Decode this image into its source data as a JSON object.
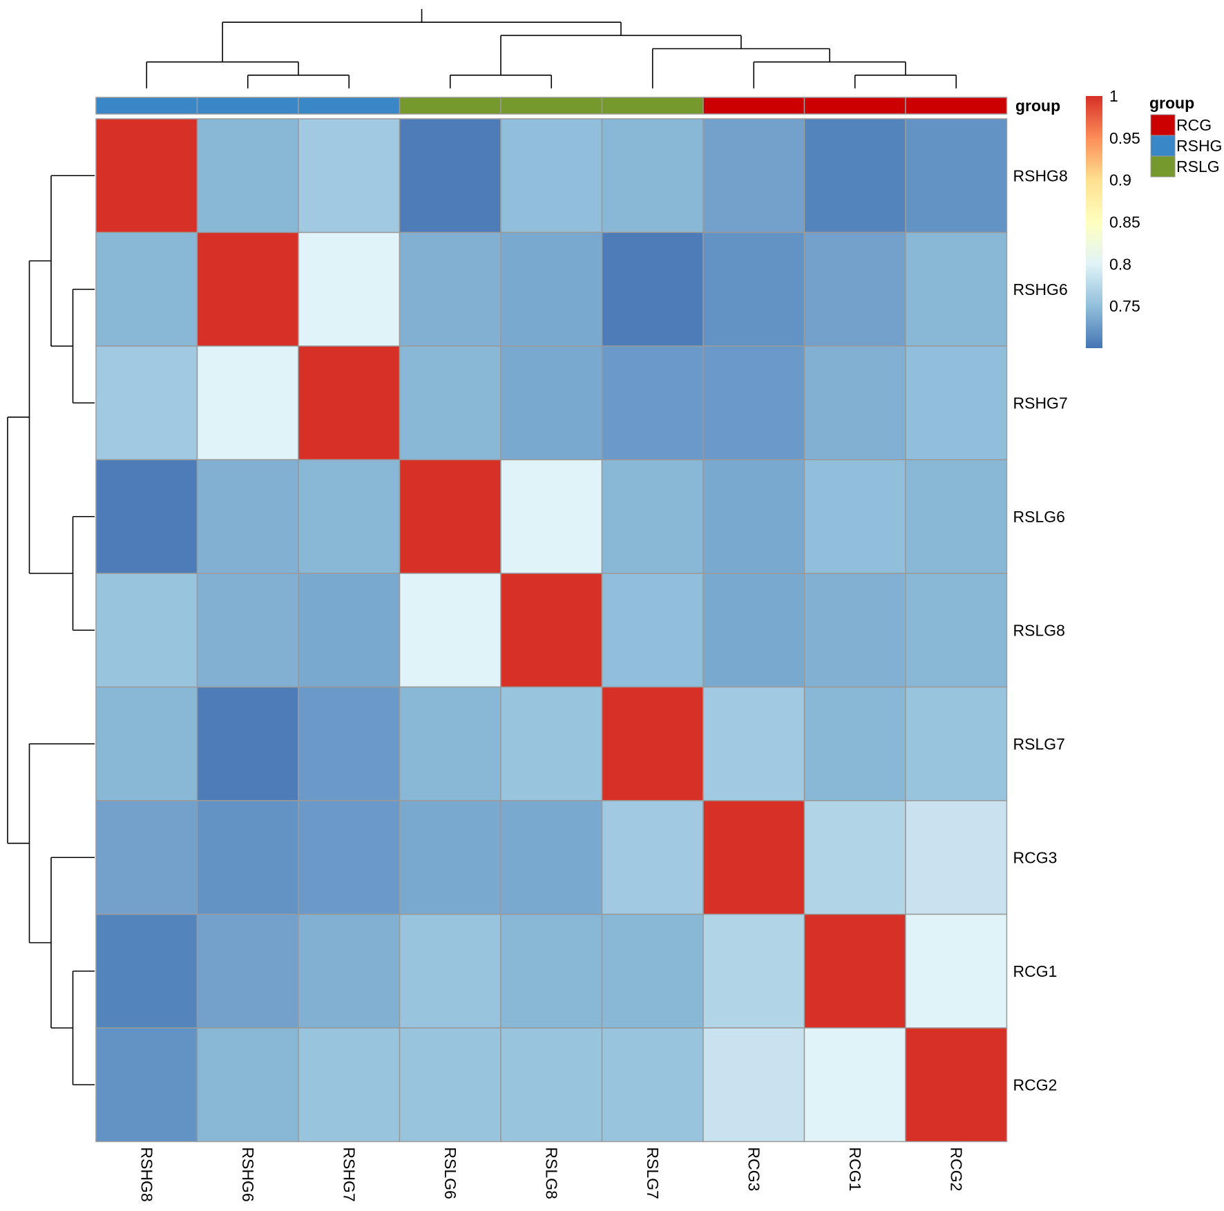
{
  "chart_data": {
    "type": "heatmap",
    "title": "",
    "xlabel": "",
    "ylabel": "",
    "columns": [
      "RSHG8",
      "RSHG6",
      "RSHG7",
      "RSLG6",
      "RSLG8",
      "RSLG7",
      "RCG3",
      "RCG1",
      "RCG2"
    ],
    "rows": [
      "RSHG8",
      "RSHG6",
      "RSHG7",
      "RSLG6",
      "RSLG8",
      "RSLG7",
      "RCG3",
      "RCG1",
      "RCG2"
    ],
    "values": [
      [
        1.0,
        0.745,
        0.76,
        0.705,
        0.75,
        0.745,
        0.73,
        0.71,
        0.72
      ],
      [
        0.745,
        1.0,
        0.8,
        0.74,
        0.735,
        0.705,
        0.72,
        0.73,
        0.745
      ],
      [
        0.76,
        0.8,
        1.0,
        0.745,
        0.735,
        0.725,
        0.725,
        0.74,
        0.75
      ],
      [
        0.705,
        0.74,
        0.745,
        1.0,
        0.8,
        0.745,
        0.735,
        0.75,
        0.745
      ],
      [
        0.755,
        0.74,
        0.735,
        0.8,
        1.0,
        0.75,
        0.735,
        0.74,
        0.745
      ],
      [
        0.745,
        0.705,
        0.725,
        0.745,
        0.755,
        1.0,
        0.76,
        0.745,
        0.755
      ],
      [
        0.73,
        0.72,
        0.725,
        0.735,
        0.735,
        0.76,
        1.0,
        0.77,
        0.785
      ],
      [
        0.71,
        0.73,
        0.74,
        0.755,
        0.745,
        0.745,
        0.77,
        1.0,
        0.8
      ],
      [
        0.72,
        0.745,
        0.755,
        0.755,
        0.755,
        0.755,
        0.785,
        0.8,
        1.0
      ]
    ],
    "value_range": [
      0.7,
      1.0
    ],
    "legend": {
      "ticks": [
        "1",
        "0.95",
        "0.9",
        "0.85",
        "0.8",
        "0.75"
      ],
      "tick_values": [
        1.0,
        0.95,
        0.9,
        0.85,
        0.8,
        0.75
      ],
      "colorscale": [
        "#4575b4",
        "#91bfdb",
        "#e0f3f8",
        "#ffffbf",
        "#fee090",
        "#fc8d59",
        "#d73027"
      ],
      "placement": "right"
    },
    "annotation": {
      "title": "group",
      "column_groups": [
        "RSHG",
        "RSHG",
        "RSHG",
        "RSLG",
        "RSLG",
        "RSLG",
        "RCG",
        "RCG",
        "RCG"
      ],
      "legend_entries": [
        {
          "label": "RCG",
          "color": "#cc0000"
        },
        {
          "label": "RSHG",
          "color": "#3a87c8"
        },
        {
          "label": "RSLG",
          "color": "#76992e"
        }
      ]
    },
    "column_dendrogram": "(((RSHG8,(RSHG6,RSHG7)),((RSLG6,RSLG8),(RSLG7,(RCG3,(RCG1,RCG2))))))",
    "row_dendrogram": "(((RSHG8,(RSHG6,RSHG7)),(RSLG6,RSLG8)),(RSLG7,(RCG3,(RCG1,RCG2))))"
  }
}
